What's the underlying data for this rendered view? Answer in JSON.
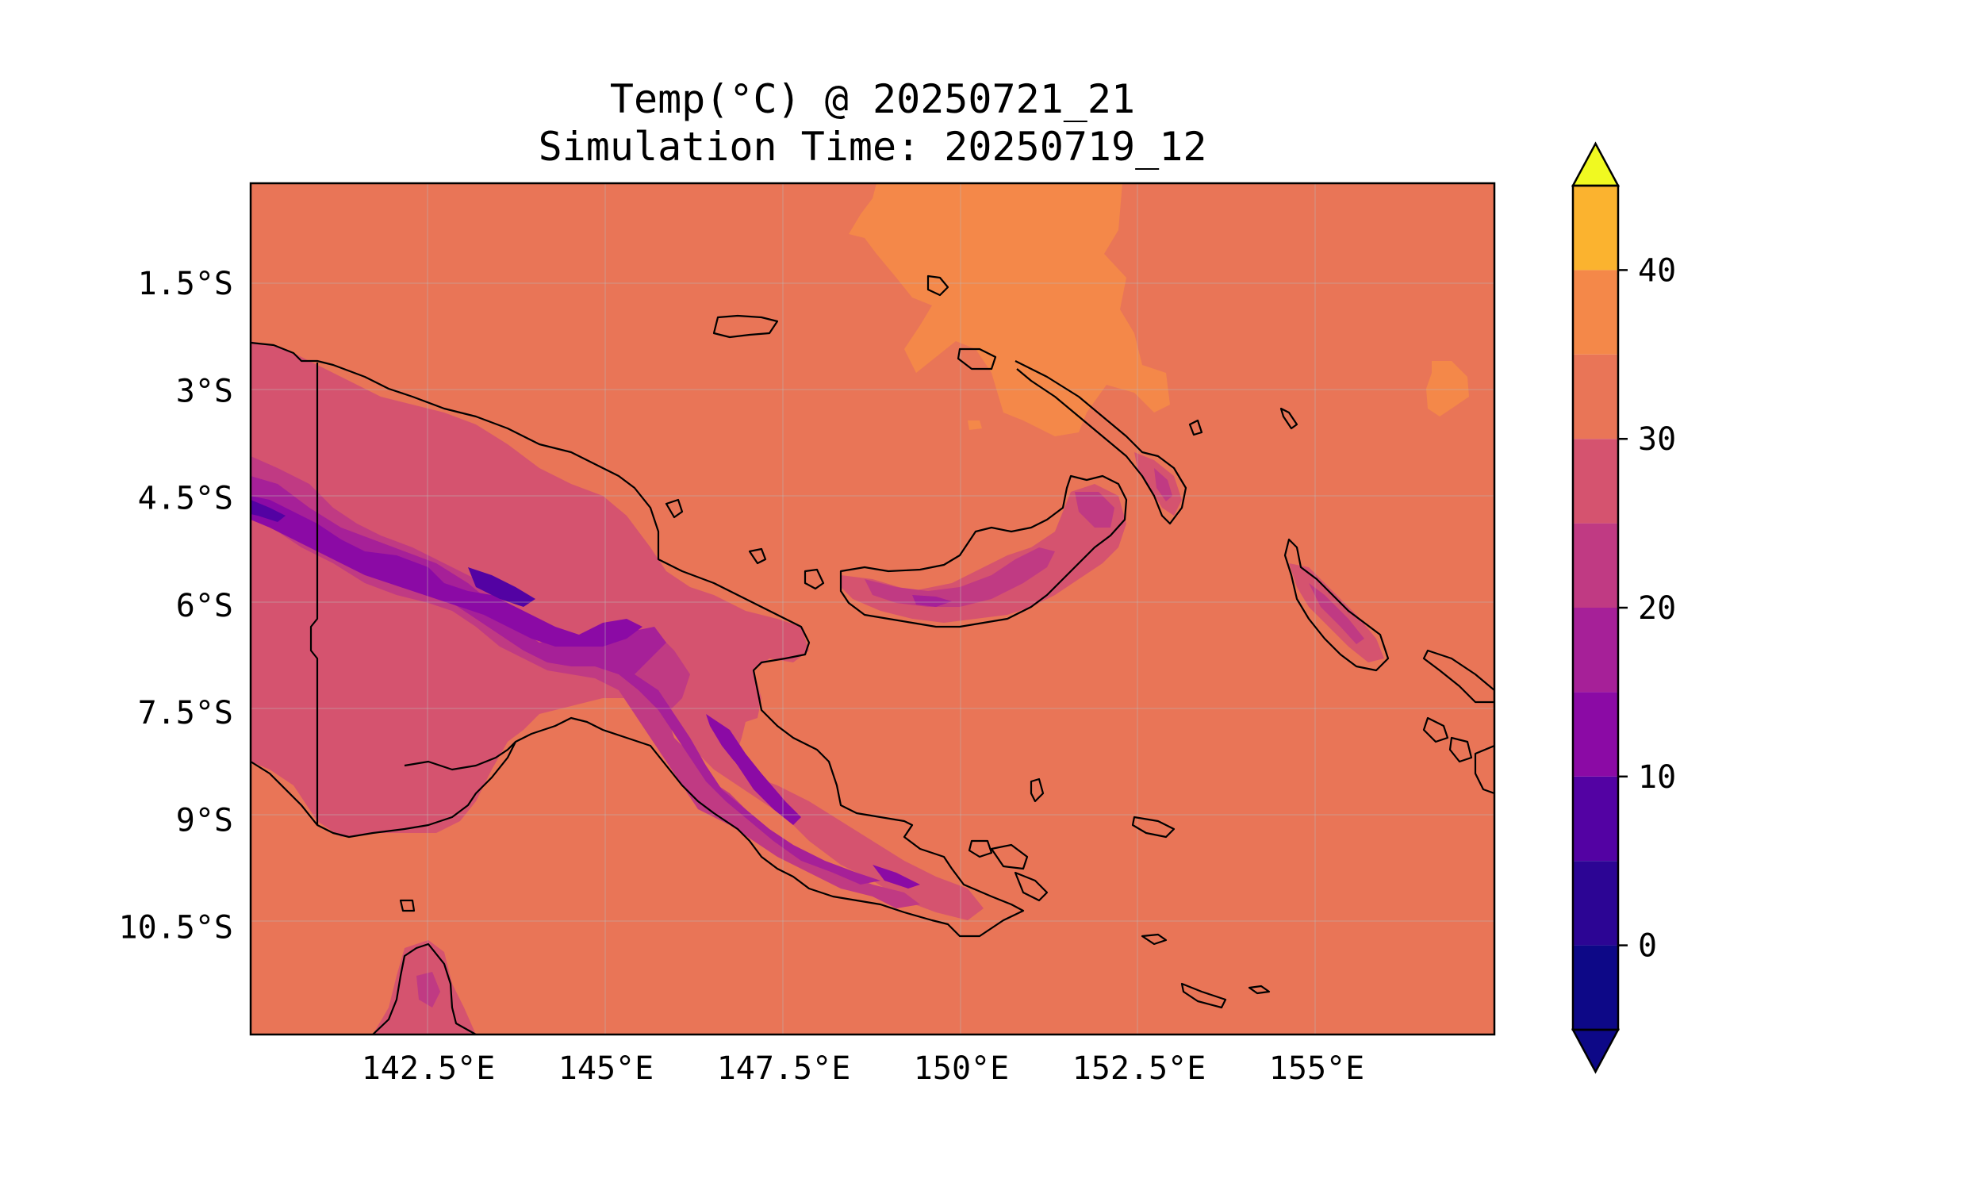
{
  "title": {
    "line1": "Temp(°C) @ 20250721_21",
    "line2": "Simulation Time: 20250719_12"
  },
  "map": {
    "lon_range": [
      140.0,
      157.5
    ],
    "lat_range": [
      -12.0,
      -0.1
    ],
    "lon_ticks": [
      "142.5°E",
      "145°E",
      "147.5°E",
      "150°E",
      "152.5°E",
      "155°E"
    ],
    "lat_ticks": [
      "1.5°S",
      "3°S",
      "4.5°S",
      "6°S",
      "7.5°S",
      "9°S",
      "10.5°S"
    ],
    "background_color": "#e97557"
  },
  "colorbar": {
    "ticks": [
      "0",
      "10",
      "20",
      "30",
      "40"
    ],
    "levels": [
      -5,
      0,
      5,
      10,
      15,
      20,
      25,
      30,
      35,
      40,
      45
    ],
    "colors": [
      "#0d0887",
      "#2c0594",
      "#5302a3",
      "#8b0aa5",
      "#a62098",
      "#c03a83",
      "#d5536f",
      "#e97557",
      "#f48849",
      "#fbb32f",
      "#f0f921"
    ],
    "under_color": "#0d0887",
    "over_color": "#f0f921",
    "colormap": "plasma"
  }
}
